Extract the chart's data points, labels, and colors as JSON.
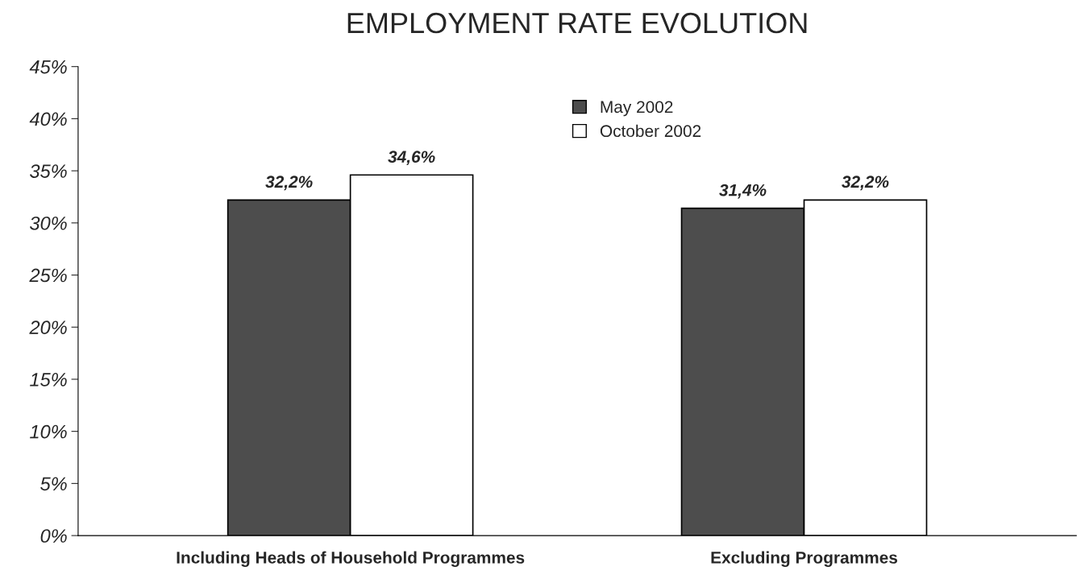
{
  "chart_data": {
    "type": "bar",
    "title": "EMPLOYMENT RATE EVOLUTION",
    "categories": [
      "Including Heads of Household Programmes",
      "Excluding Programmes"
    ],
    "series": [
      {
        "name": "May 2002",
        "color": "#4d4d4d",
        "values": [
          32.2,
          31.4
        ],
        "value_labels": [
          "32,2%",
          "31,4%"
        ]
      },
      {
        "name": "October 2002",
        "color": "#ffffff",
        "values": [
          34.6,
          32.2
        ],
        "value_labels": [
          "34,6%",
          "32,2%"
        ]
      }
    ],
    "ylim": [
      0,
      45
    ],
    "yticks": [
      {
        "value": 0,
        "label": "0%"
      },
      {
        "value": 5,
        "label": "5%"
      },
      {
        "value": 10,
        "label": "10%"
      },
      {
        "value": 15,
        "label": "15%"
      },
      {
        "value": 20,
        "label": "20%"
      },
      {
        "value": 25,
        "label": "25%"
      },
      {
        "value": 30,
        "label": "30%"
      },
      {
        "value": 35,
        "label": "35%"
      },
      {
        "value": 40,
        "label": "40%"
      },
      {
        "value": 45,
        "label": "45%"
      }
    ],
    "grid": false,
    "legend": "top"
  }
}
